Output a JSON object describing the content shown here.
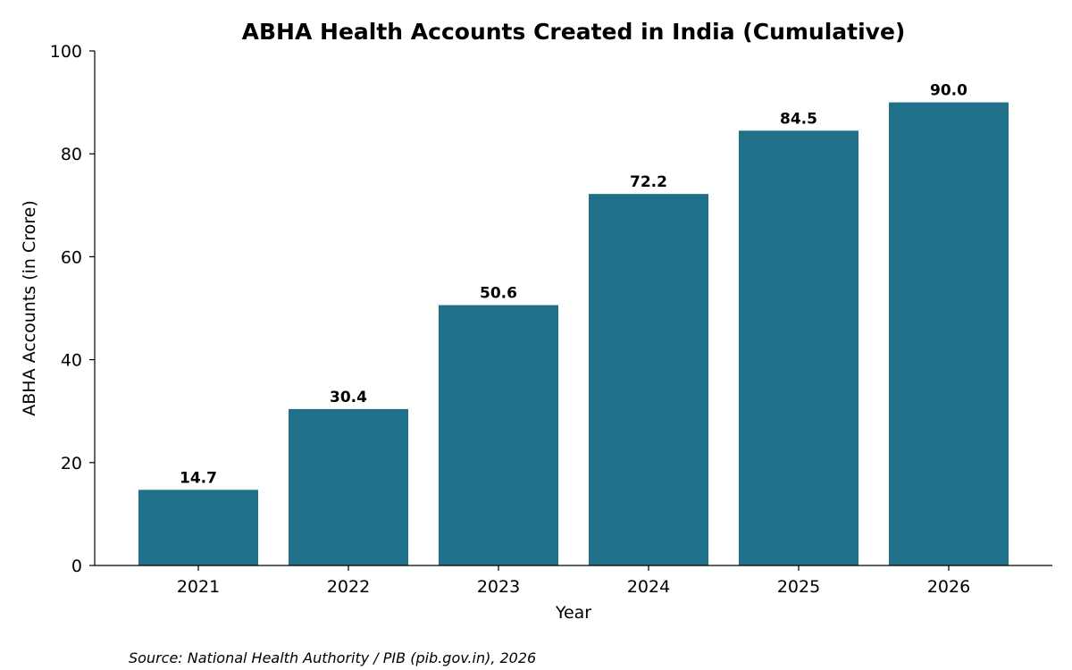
{
  "chart_data": {
    "type": "bar",
    "title": "ABHA Health Accounts Created in India (Cumulative)",
    "xlabel": "Year",
    "ylabel": "ABHA Accounts (in Crore)",
    "categories": [
      "2021",
      "2022",
      "2023",
      "2024",
      "2025",
      "2026"
    ],
    "values": [
      14.7,
      30.4,
      50.6,
      72.2,
      84.5,
      90.0
    ],
    "data_labels": [
      "14.7",
      "30.4",
      "50.6",
      "72.2",
      "84.5",
      "90.0"
    ],
    "ylim": [
      0,
      100
    ],
    "yticks": [
      0,
      20,
      40,
      60,
      80,
      100
    ],
    "grid": false,
    "legend": "none",
    "bar_color": "#21708a",
    "source": "Source: National Health Authority / PIB (pib.gov.in), 2026"
  }
}
